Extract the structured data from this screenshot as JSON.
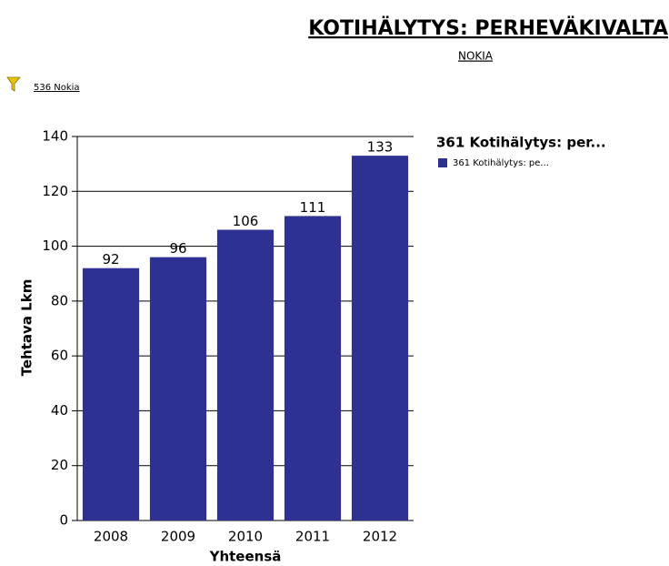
{
  "chart_data": {
    "type": "bar",
    "title": "KOTIHÄLYTYS: PERHEVÄKIVALTA",
    "subtitle": "NOKIA",
    "filter": "536 Nokia",
    "x_label": "Yhteensä",
    "y_label": "Tehtava Lkm",
    "legend_title": "361 Kotihälytys: per...",
    "categories": [
      "2008",
      "2009",
      "2010",
      "2011",
      "2012"
    ],
    "series": [
      {
        "name": "361 Kotihälytys: pe...",
        "color": "#2e3192",
        "values": [
          92,
          96,
          106,
          111,
          133
        ]
      }
    ],
    "ylim": [
      0,
      140
    ],
    "yticks": [
      0,
      20,
      40,
      60,
      80,
      100,
      120,
      140
    ],
    "grid": true,
    "legend": "right"
  }
}
